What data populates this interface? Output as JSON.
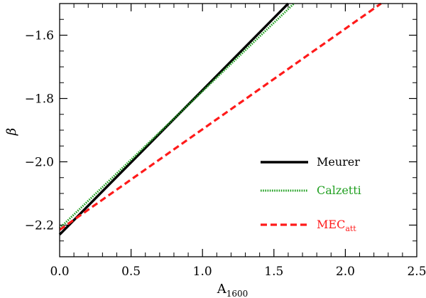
{
  "chart_data": {
    "type": "line",
    "xlabel_main": "A",
    "xlabel_sub": "1600",
    "ylabel": "β",
    "xlim": [
      0.0,
      2.5
    ],
    "ylim": [
      -2.3,
      -1.5
    ],
    "x_major_ticks": [
      0.0,
      0.5,
      1.0,
      1.5,
      2.0,
      2.5
    ],
    "x_tick_labels": [
      "0.0",
      "0.5",
      "1.0",
      "1.5",
      "2.0",
      "2.5"
    ],
    "x_minor_step": 0.1,
    "y_major_ticks": [
      -2.2,
      -2.0,
      -1.8,
      -1.6
    ],
    "y_tick_labels": [
      "−2.2",
      "−2.0",
      "−1.8",
      "−1.6"
    ],
    "y_minor_step": 0.05,
    "grid": false,
    "legend_position": "lower-right",
    "series": [
      {
        "name": "Meurer",
        "label_main": "Meurer",
        "label_sub": "",
        "color": "#000000",
        "style": "solid",
        "x": [
          0.0,
          1.6
        ],
        "y": [
          -2.23,
          -1.5
        ]
      },
      {
        "name": "Calzetti",
        "label_main": "Calzetti",
        "label_sub": "",
        "color": "#22a022",
        "style": "dotted",
        "x": [
          0.0,
          1.64
        ],
        "y": [
          -2.21,
          -1.5
        ]
      },
      {
        "name": "MECatt",
        "label_main": "MEC",
        "label_sub": "att",
        "color": "#ff1a1a",
        "style": "dashed",
        "x": [
          0.0,
          2.25
        ],
        "y": [
          -2.215,
          -1.5
        ]
      }
    ]
  }
}
